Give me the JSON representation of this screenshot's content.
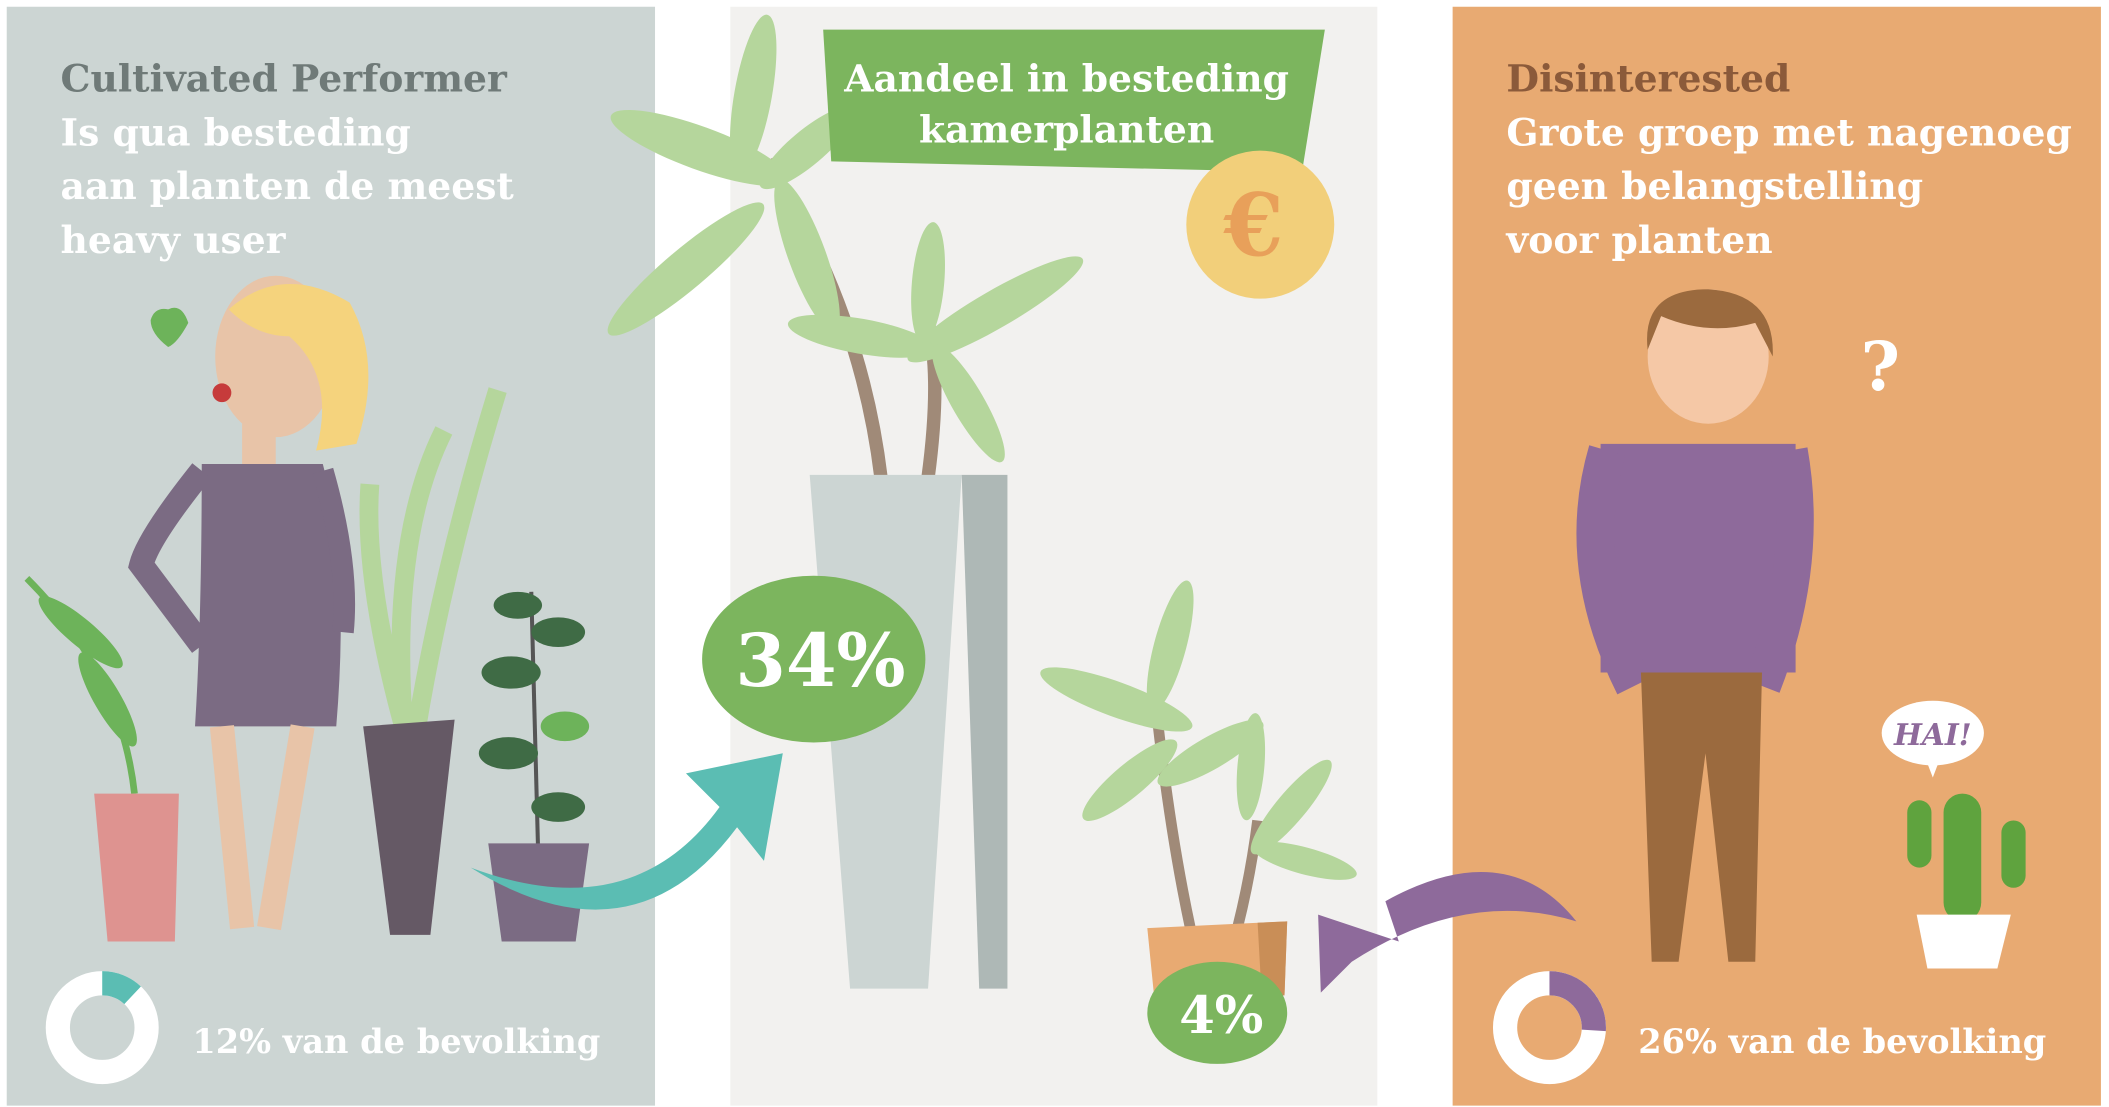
{
  "left": {
    "title": "Cultivated Performer",
    "lines": [
      "Is qua besteding",
      "aan  planten de meest",
      "heavy user"
    ],
    "donut": {
      "value": 12,
      "label": "12% van de bevolking"
    }
  },
  "middle": {
    "banner": [
      "Aandeel in besteding",
      "kamerplanten"
    ],
    "big_share": "34%",
    "small_share": "4%"
  },
  "right": {
    "title": "Disinterested",
    "lines": [
      "Grote groep met nagenoeg",
      "geen belangstelling",
      "voor planten"
    ],
    "donut": {
      "value": 26,
      "label": "26% van de bevolking"
    },
    "question": "?",
    "speech": "HAI!"
  }
}
